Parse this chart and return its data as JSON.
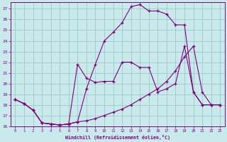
{
  "xlabel": "Windchill (Refroidissement éolien,°C)",
  "background_color": "#c8eaea",
  "grid_color": "#a0c8c8",
  "line_color": "#800080",
  "xlim": [
    -0.5,
    23.5
  ],
  "ylim": [
    16,
    27.6
  ],
  "yticks": [
    16,
    17,
    18,
    19,
    20,
    21,
    22,
    23,
    24,
    25,
    26,
    27
  ],
  "xticks": [
    0,
    1,
    2,
    3,
    4,
    5,
    6,
    7,
    8,
    9,
    10,
    11,
    12,
    13,
    14,
    15,
    16,
    17,
    18,
    19,
    20,
    21,
    22,
    23
  ],
  "curve_top_x": [
    0,
    1,
    2,
    3,
    4,
    5,
    6,
    7,
    8,
    9,
    10,
    11,
    12,
    13,
    14,
    15,
    16,
    17,
    18,
    19,
    20,
    21,
    22,
    23
  ],
  "curve_top_y": [
    18.5,
    18.1,
    17.5,
    16.3,
    16.2,
    16.1,
    16.2,
    16.4,
    19.5,
    21.8,
    24.0,
    24.8,
    25.7,
    27.2,
    27.4,
    26.8,
    26.8,
    26.5,
    25.5,
    25.5,
    19.2,
    18.0,
    18.0,
    18.0
  ],
  "curve_mid_x": [
    0,
    1,
    2,
    3,
    4,
    5,
    6,
    7,
    8,
    9,
    10,
    11,
    12,
    13,
    14,
    15,
    16,
    17,
    18,
    19,
    20,
    21,
    22,
    23
  ],
  "curve_mid_y": [
    18.5,
    18.1,
    17.5,
    16.3,
    16.2,
    16.1,
    16.2,
    21.8,
    20.5,
    20.1,
    20.2,
    20.2,
    22.0,
    22.0,
    21.5,
    21.5,
    19.2,
    19.5,
    20.0,
    23.5,
    19.2,
    18.0,
    18.0,
    18.0
  ],
  "curve_bot_x": [
    0,
    1,
    2,
    3,
    4,
    5,
    6,
    7,
    8,
    9,
    10,
    11,
    12,
    13,
    14,
    15,
    16,
    17,
    18,
    19,
    20,
    21,
    22,
    23
  ],
  "curve_bot_y": [
    18.5,
    18.1,
    17.5,
    16.3,
    16.2,
    16.1,
    16.2,
    16.4,
    16.5,
    16.7,
    17.0,
    17.3,
    17.6,
    18.0,
    18.5,
    19.0,
    19.5,
    20.2,
    21.2,
    22.5,
    23.5,
    19.2,
    18.0,
    18.0
  ]
}
